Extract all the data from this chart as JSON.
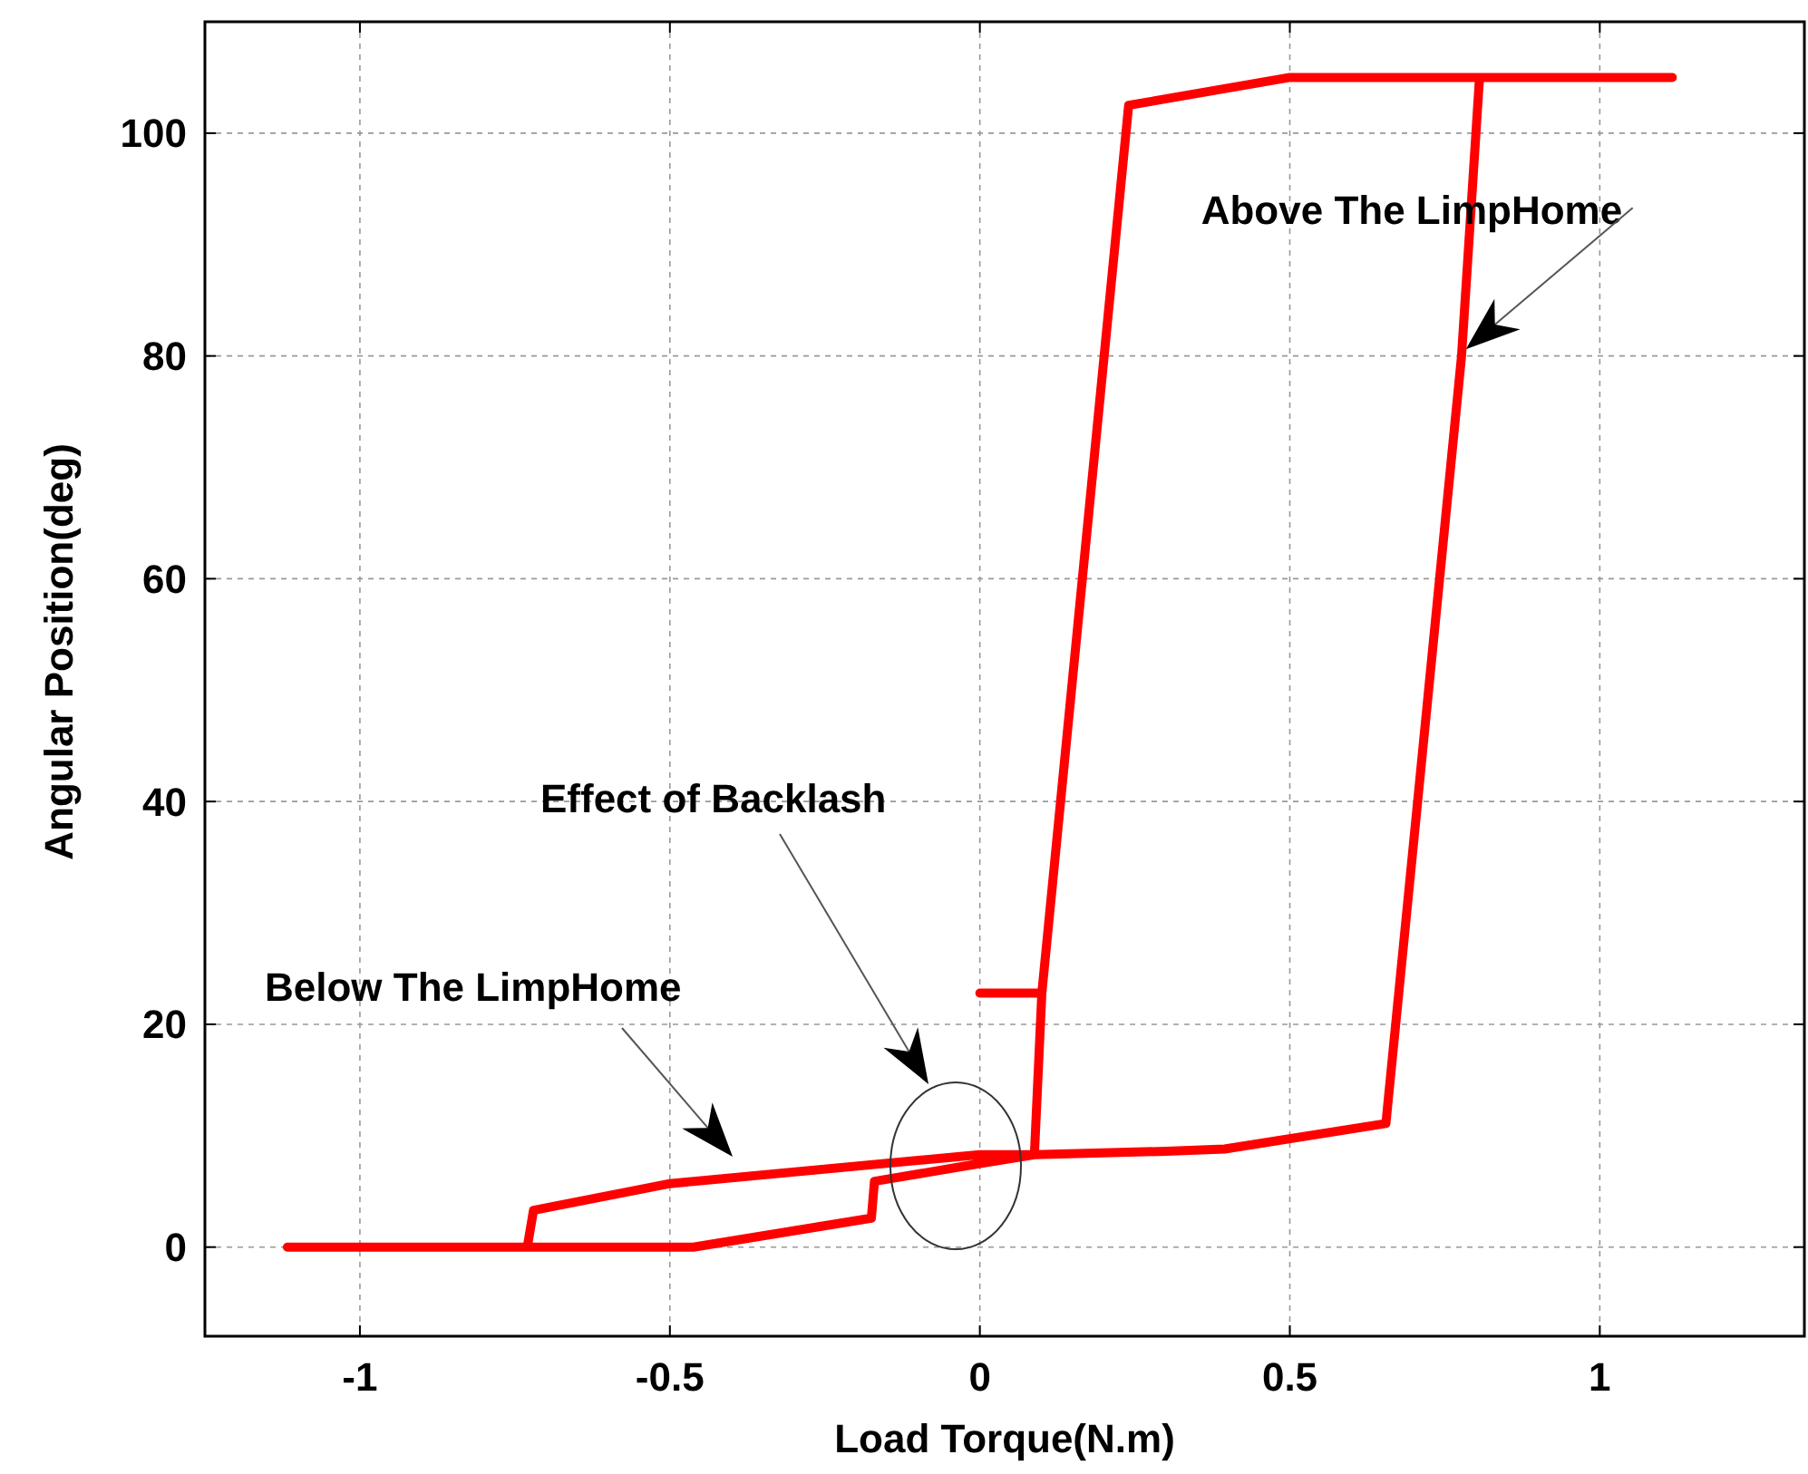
{
  "chart_data": {
    "type": "line",
    "xlabel": "Load Torque(N.m)",
    "ylabel": "Angular Position(deg)",
    "xlim": [
      -1.25,
      1.33
    ],
    "ylim": [
      -8,
      110
    ],
    "xticks": [
      -1,
      -0.5,
      0,
      0.5,
      1
    ],
    "yticks": [
      0,
      20,
      40,
      60,
      80,
      100
    ],
    "grid": true,
    "line_style": "solid",
    "marker": "none",
    "series": [
      {
        "color": "#ff0000",
        "x": [
          -1.117,
          -0.462,
          -0.175,
          -0.17,
          0,
          0.088,
          0.3,
          0.395,
          0.655,
          0.777,
          0.806,
          1.117,
          0.5,
          0.24,
          0.1,
          0.088,
          0,
          -0.5,
          -0.72,
          -0.73
        ],
        "values": [
          0,
          0,
          2.6,
          5.9,
          7.5,
          8.3,
          8.6,
          8.8,
          11.1,
          80,
          105,
          105,
          105,
          102.5,
          22.8,
          8.3,
          8.3,
          5.7,
          3.3,
          0
        ]
      },
      {
        "color": "#ff0000",
        "x": [
          0,
          0.1
        ],
        "values": [
          22.8,
          22.8
        ]
      }
    ],
    "annotations": [
      {
        "text": "Above The LimpHome",
        "x": 0.784,
        "y": 80.6
      },
      "Below The LimpHome",
      "Effect of Backlash"
    ]
  }
}
